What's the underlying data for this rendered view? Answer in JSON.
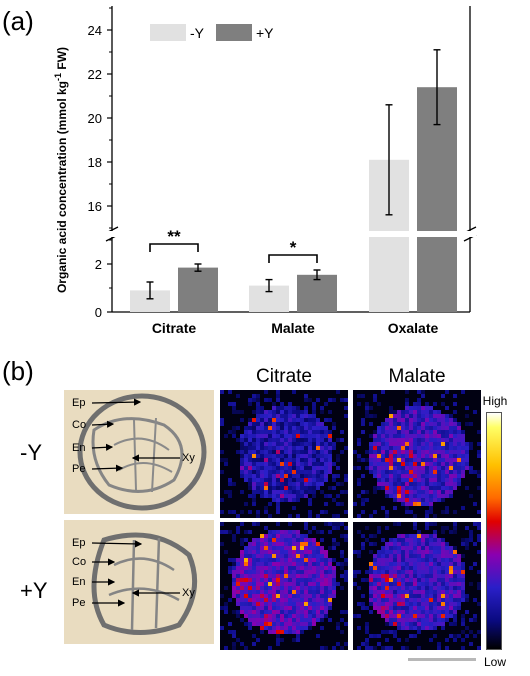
{
  "panel_a_label": "(a)",
  "panel_b_label": "(b)",
  "chart_data": {
    "type": "bar",
    "categories": [
      "Citrate",
      "Malate",
      "Oxalate"
    ],
    "series": [
      {
        "name": "-Y",
        "values": [
          0.9,
          1.1,
          18.1
        ],
        "errors": [
          0.35,
          0.25,
          2.5
        ],
        "color": "#e1e1e1"
      },
      {
        "name": "+Y",
        "values": [
          1.85,
          1.55,
          21.4
        ],
        "errors": [
          0.15,
          0.2,
          1.7
        ],
        "color": "#7f7f7f"
      }
    ],
    "ylabel": "Organic acid concentration (mmol kg",
    "ylabel_sup": "-1",
    "ylabel_end": " FW)",
    "y_axis_break": {
      "lower_range": [
        0,
        3
      ],
      "upper_range": [
        15,
        25
      ]
    },
    "yticks_lower": [
      "0",
      "2"
    ],
    "yticks_upper": [
      "16",
      "18",
      "20",
      "22",
      "24"
    ],
    "significance": [
      {
        "category": "Citrate",
        "label": "**"
      },
      {
        "category": "Malate",
        "label": "*"
      }
    ],
    "legend_position": "top-left"
  },
  "panel_b": {
    "columns": [
      "Citrate",
      "Malate"
    ],
    "rows": [
      "-Y",
      "+Y"
    ],
    "anatomy_labels": [
      "Ep",
      "Co",
      "En",
      "Pe",
      "Xy"
    ],
    "colorbar_high": "High",
    "colorbar_low": "Low"
  }
}
